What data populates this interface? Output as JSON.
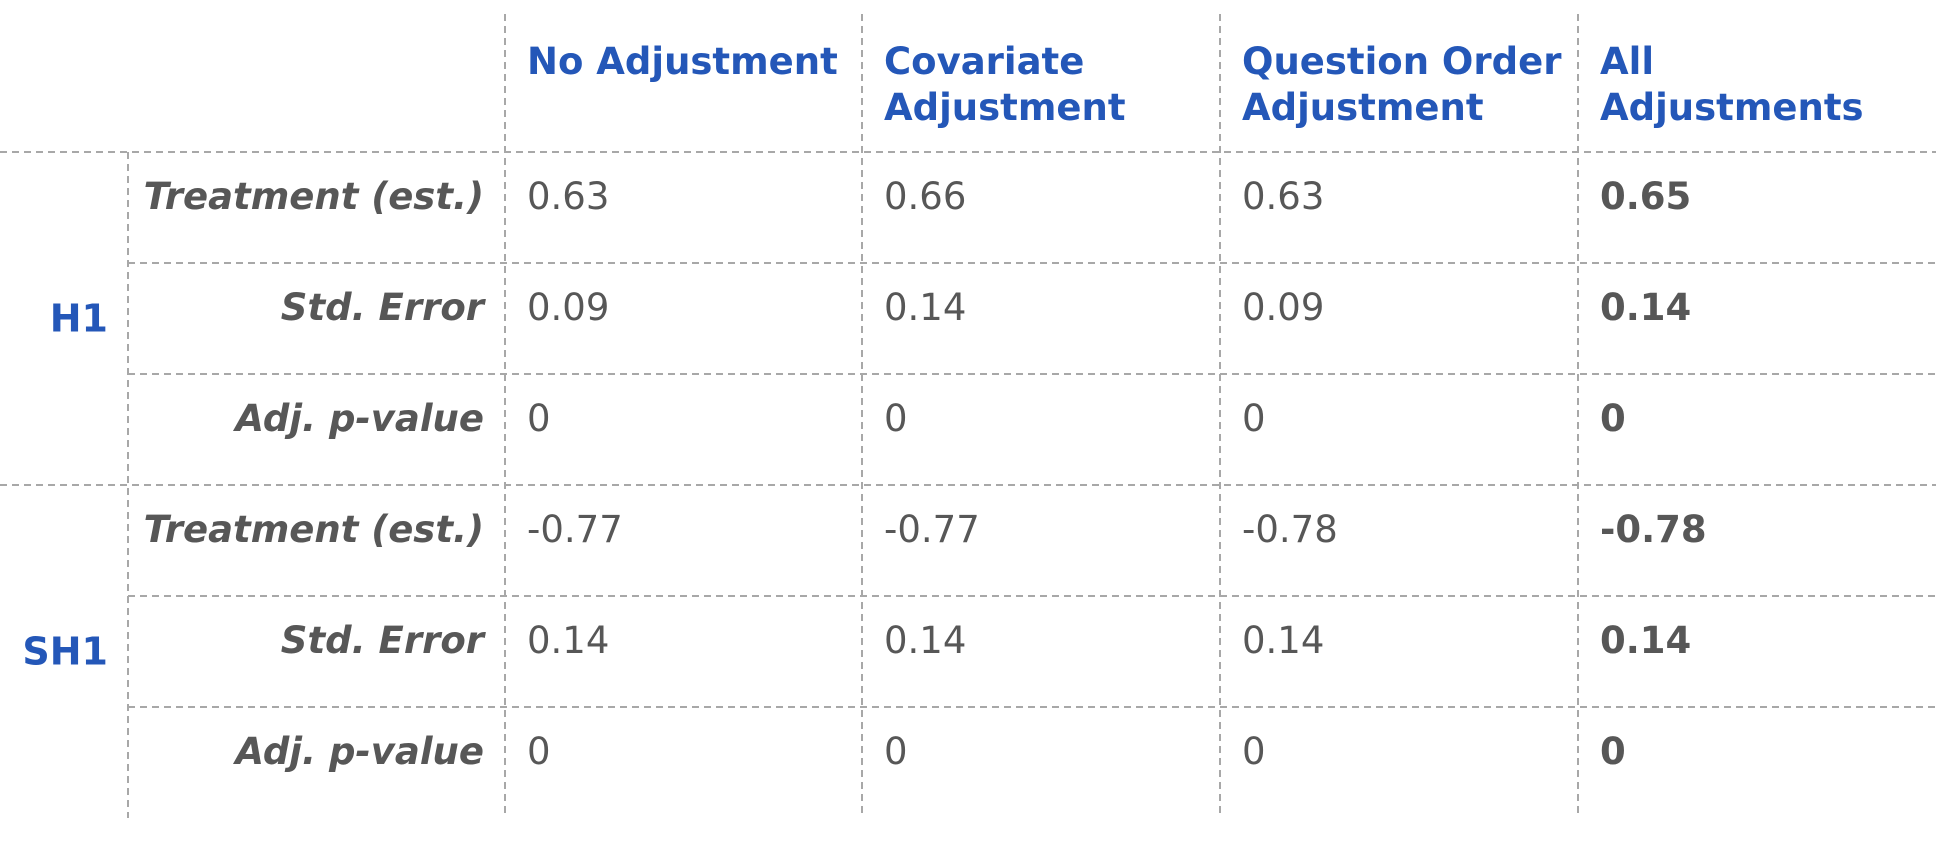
{
  "chart_data": {
    "type": "table",
    "columns": [
      "No Adjustment",
      "Covariate Adjustment",
      "Question Order Adjustment",
      "All Adjustments"
    ],
    "column_lines": [
      [
        "No Adjustment"
      ],
      [
        "Covariate",
        "Adjustment"
      ],
      [
        "Question Order",
        "Adjustment"
      ],
      [
        "All",
        "Adjustments"
      ]
    ],
    "bold_column": "All Adjustments",
    "groups": [
      {
        "name": "H1",
        "rows": [
          {
            "label": "Treatment (est.)",
            "values": [
              "0.63",
              "0.66",
              "0.63",
              "0.65"
            ]
          },
          {
            "label": "Std. Error",
            "values": [
              "0.09",
              "0.14",
              "0.09",
              "0.14"
            ]
          },
          {
            "label": "Adj. p-value",
            "values": [
              "0",
              "0",
              "0",
              "0"
            ]
          }
        ]
      },
      {
        "name": "SH1",
        "rows": [
          {
            "label": "Treatment (est.)",
            "values": [
              "-0.77",
              "-0.77",
              "-0.78",
              "-0.78"
            ]
          },
          {
            "label": "Std. Error",
            "values": [
              "0.14",
              "0.14",
              "0.14",
              "0.14"
            ]
          },
          {
            "label": "Adj. p-value",
            "values": [
              "0",
              "0",
              "0",
              "0"
            ]
          }
        ]
      }
    ]
  },
  "colors": {
    "header_text": "#2457b8",
    "body_text": "#575757",
    "grid": "#a8a8a8",
    "background": "#ffffff"
  }
}
